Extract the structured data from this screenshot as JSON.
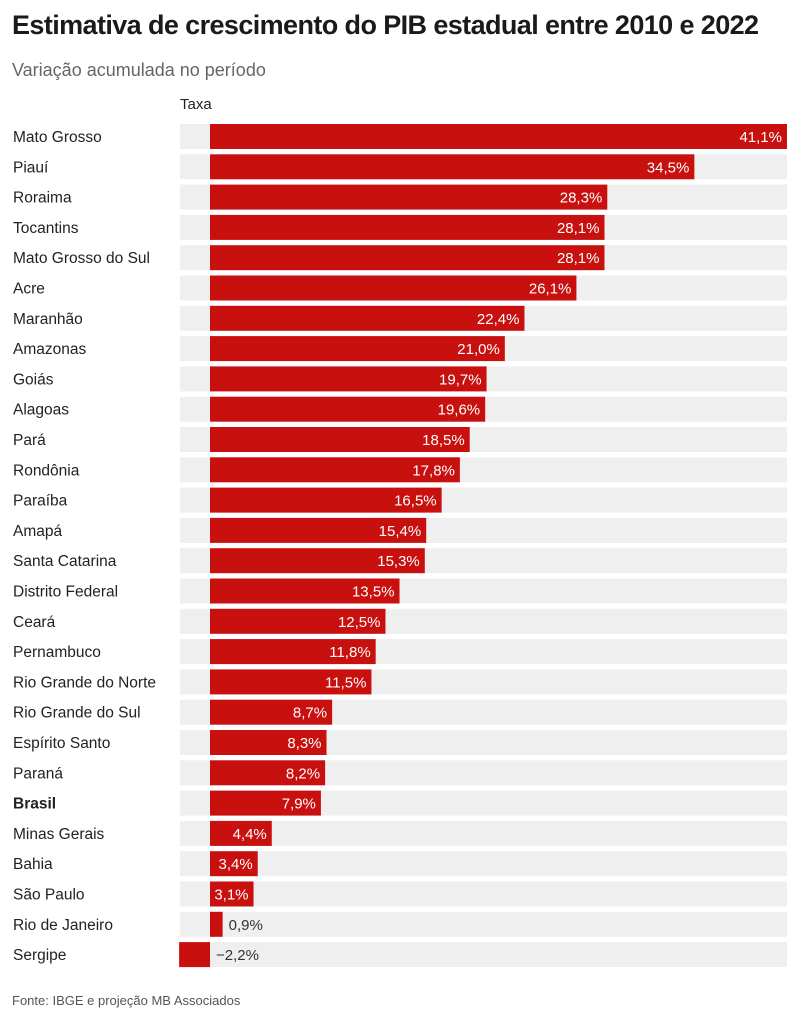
{
  "header": {
    "title": "Estimativa de crescimento do PIB estadual entre 2010 e 2022",
    "subtitle": "Variação acumulada no período",
    "column_label": "Taxa"
  },
  "footer": {
    "source": "Fonte: IBGE e projeção MB Associados"
  },
  "colors": {
    "bar": "#c8100f",
    "row_background": "#efefef",
    "label_inside": "#ffffff",
    "label_outside": "#333333"
  },
  "chart_data": {
    "type": "bar",
    "orientation": "horizontal",
    "title": "Estimativa de crescimento do PIB estadual entre 2010 e 2022",
    "subtitle": "Variação acumulada no período",
    "column_label": "Taxa",
    "unit": "%",
    "xlim": [
      -2.2,
      41.1
    ],
    "highlight": "Brasil",
    "categories": [
      "Mato Grosso",
      "Piauí",
      "Roraima",
      "Tocantins",
      "Mato Grosso do Sul",
      "Acre",
      "Maranhão",
      "Amazonas",
      "Goiás",
      "Alagoas",
      "Pará",
      "Rondônia",
      "Paraíba",
      "Amapá",
      "Santa Catarina",
      "Distrito Federal",
      "Ceará",
      "Pernambuco",
      "Rio Grande do Norte",
      "Rio Grande do Sul",
      "Espírito Santo",
      "Paraná",
      "Brasil",
      "Minas Gerais",
      "Bahia",
      "São Paulo",
      "Rio de Janeiro",
      "Sergipe"
    ],
    "values": [
      41.1,
      34.5,
      28.3,
      28.1,
      28.1,
      26.1,
      22.4,
      21.0,
      19.7,
      19.6,
      18.5,
      17.8,
      16.5,
      15.4,
      15.3,
      13.5,
      12.5,
      11.8,
      11.5,
      8.7,
      8.3,
      8.2,
      7.9,
      4.4,
      3.4,
      3.1,
      0.9,
      -2.2
    ],
    "value_labels": [
      "41,1%",
      "34,5%",
      "28,3%",
      "28,1%",
      "28,1%",
      "26,1%",
      "22,4%",
      "21,0%",
      "19,7%",
      "19,6%",
      "18,5%",
      "17,8%",
      "16,5%",
      "15,4%",
      "15,3%",
      "13,5%",
      "12,5%",
      "11,8%",
      "11,5%",
      "8,7%",
      "8,3%",
      "8,2%",
      "7,9%",
      "4,4%",
      "3,4%",
      "3,1%",
      "0,9%",
      "−2,2%"
    ]
  }
}
